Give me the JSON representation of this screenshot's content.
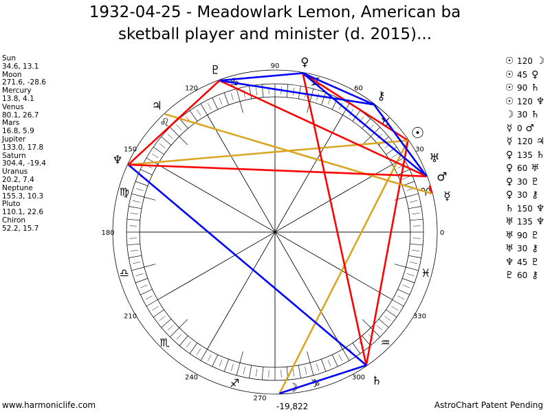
{
  "title_line1": "1932-04-25 - Meadowlark Lemon, American ba",
  "title_line2": "sketball player and minister (d. 2015)...",
  "footer_left": "www.harmoniclife.com",
  "footer_right": "AstroChart Patent Pending",
  "bottom_value": "-19,822",
  "colors": {
    "hard": "#ff0000",
    "soft": "#0000ff",
    "trine": "#daa520"
  },
  "planets": [
    {
      "name": "Sun",
      "coords": "34.6, 13.1",
      "lon": 34.6,
      "glyph": "☉"
    },
    {
      "name": "Moon",
      "coords": "271.6, -28.6",
      "lon": 271.6,
      "glyph": "☽"
    },
    {
      "name": "Mercury",
      "coords": "13.8, 4.1",
      "lon": 13.8,
      "glyph": "☿"
    },
    {
      "name": "Venus",
      "coords": "80.1, 26.7",
      "lon": 80.1,
      "glyph": "♀"
    },
    {
      "name": "Mars",
      "coords": "16.8, 5.9",
      "lon": 16.8,
      "glyph": "♂"
    },
    {
      "name": "Jupiter",
      "coords": "133.0, 17.8",
      "lon": 133.0,
      "glyph": "♃"
    },
    {
      "name": "Saturn",
      "coords": "304.4, -19.4",
      "lon": 304.4,
      "glyph": "♄"
    },
    {
      "name": "Uranus",
      "coords": "20.2, 7.4",
      "lon": 20.2,
      "glyph": "♅"
    },
    {
      "name": "Neptune",
      "coords": "155.3, 10.3",
      "lon": 155.3,
      "glyph": "♆"
    },
    {
      "name": "Pluto",
      "coords": "110.1, 22.6",
      "lon": 110.1,
      "glyph": "♇"
    },
    {
      "name": "Chiron",
      "coords": "52.2, 15.7",
      "lon": 52.2,
      "glyph": "⚷"
    }
  ],
  "aspects": [
    {
      "a": "Sun",
      "angle": "120",
      "b": "Moon"
    },
    {
      "a": "Sun",
      "angle": "45",
      "b": "Venus"
    },
    {
      "a": "Sun",
      "angle": "90",
      "b": "Saturn"
    },
    {
      "a": "Sun",
      "angle": "120",
      "b": "Neptune"
    },
    {
      "a": "Moon",
      "angle": "30",
      "b": "Saturn"
    },
    {
      "a": "Mercury",
      "angle": "0",
      "b": "Mars"
    },
    {
      "a": "Mercury",
      "angle": "120",
      "b": "Jupiter"
    },
    {
      "a": "Venus",
      "angle": "135",
      "b": "Saturn"
    },
    {
      "a": "Venus",
      "angle": "60",
      "b": "Uranus"
    },
    {
      "a": "Venus",
      "angle": "30",
      "b": "Pluto"
    },
    {
      "a": "Venus",
      "angle": "30",
      "b": "Chiron"
    },
    {
      "a": "Saturn",
      "angle": "150",
      "b": "Neptune"
    },
    {
      "a": "Uranus",
      "angle": "135",
      "b": "Neptune"
    },
    {
      "a": "Uranus",
      "angle": "90",
      "b": "Pluto"
    },
    {
      "a": "Uranus",
      "angle": "30",
      "b": "Chiron"
    },
    {
      "a": "Neptune",
      "angle": "45",
      "b": "Pluto"
    },
    {
      "a": "Pluto",
      "angle": "60",
      "b": "Chiron"
    }
  ],
  "chart_data": {
    "type": "astrological-wheel",
    "degree_labels": [
      "0",
      "30",
      "60",
      "90",
      "120",
      "150",
      "180",
      "210",
      "240",
      "270",
      "300",
      "330"
    ],
    "signs": [
      "♈",
      "♉",
      "♊",
      "♋",
      "♌",
      "♍",
      "♎",
      "♏",
      "♐",
      "♑",
      "♒",
      "♓"
    ],
    "aspect_color_by_angle": {
      "0": "hard",
      "45": "hard",
      "90": "hard",
      "135": "hard",
      "30": "soft",
      "60": "soft",
      "150": "soft",
      "120": "trine"
    }
  }
}
